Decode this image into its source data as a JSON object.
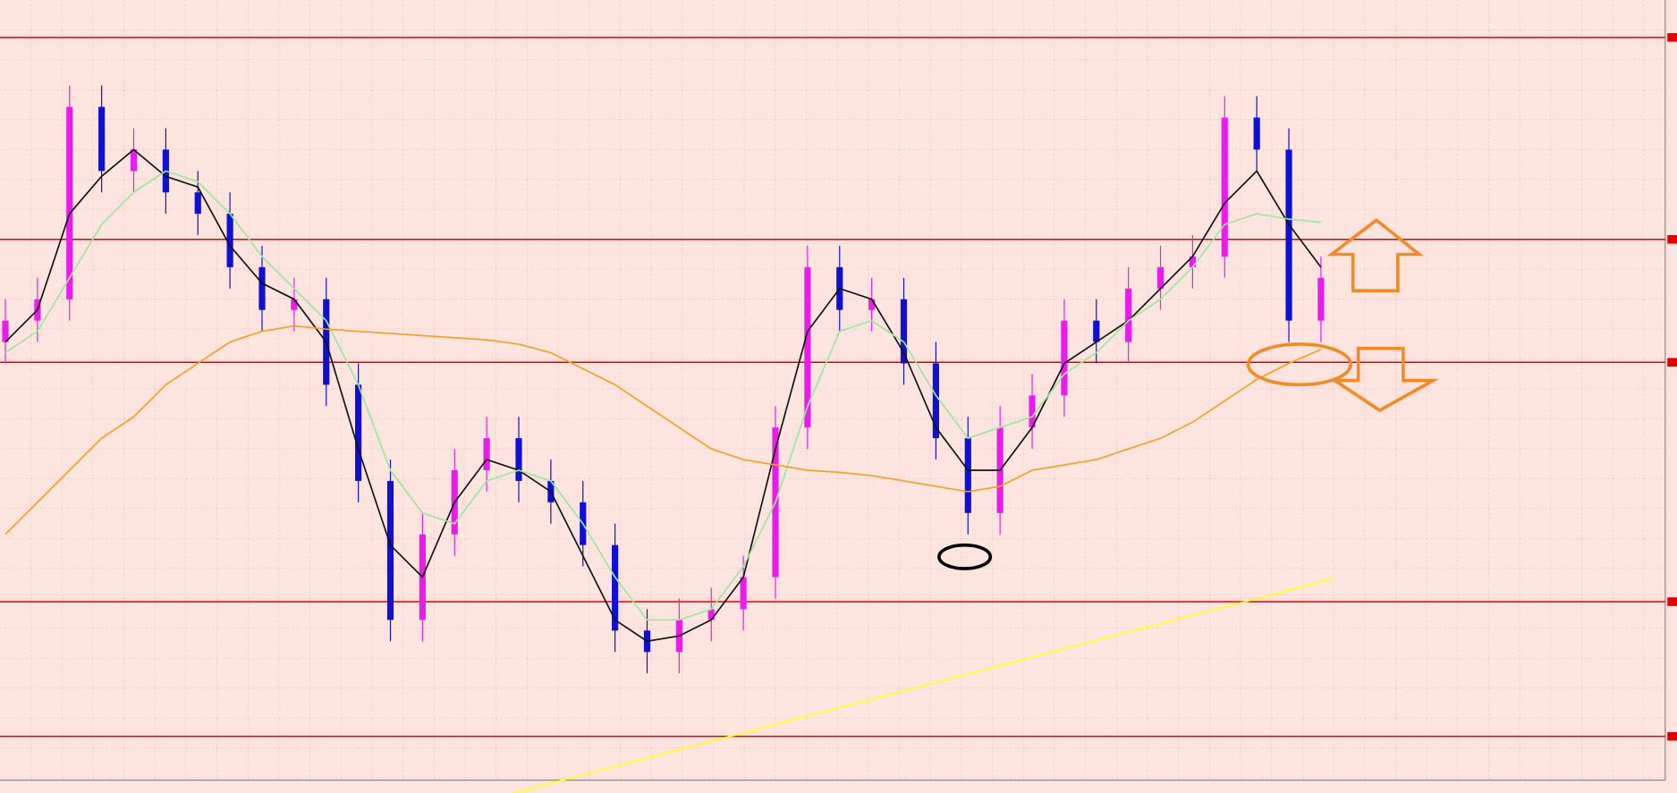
{
  "chart_data": {
    "type": "candlestick",
    "bull_color": "#e81ee8",
    "bear_color": "#1010d0",
    "grid": true,
    "ylim": [
      0,
      742
    ],
    "xlim": [
      -0.167,
      51.73
    ],
    "open": [
      422,
      442,
      462,
      642,
      582,
      602,
      562,
      542,
      492,
      452,
      462,
      382,
      292,
      162,
      242,
      302,
      332,
      292,
      272,
      232,
      152,
      132,
      162,
      172,
      202,
      342,
      492,
      452,
      462,
      402,
      332,
      262,
      342,
      372,
      442,
      422,
      472,
      492,
      502,
      632,
      602,
      442
    ],
    "high": [
      462,
      482,
      662,
      662,
      622,
      622,
      582,
      562,
      512,
      482,
      482,
      402,
      312,
      262,
      322,
      352,
      352,
      312,
      292,
      252,
      172,
      182,
      192,
      222,
      362,
      512,
      512,
      482,
      482,
      422,
      352,
      362,
      392,
      462,
      462,
      492,
      512,
      522,
      652,
      652,
      622,
      502
    ],
    "low": [
      402,
      422,
      442,
      562,
      562,
      542,
      522,
      472,
      432,
      432,
      362,
      272,
      142,
      142,
      222,
      282,
      272,
      252,
      212,
      132,
      112,
      112,
      142,
      152,
      182,
      322,
      432,
      432,
      382,
      312,
      242,
      242,
      322,
      352,
      402,
      402,
      452,
      472,
      482,
      582,
      422,
      422
    ],
    "close": [
      442,
      462,
      642,
      582,
      602,
      562,
      542,
      492,
      452,
      462,
      382,
      292,
      162,
      242,
      302,
      332,
      292,
      272,
      232,
      152,
      132,
      162,
      172,
      202,
      342,
      492,
      452,
      462,
      402,
      332,
      262,
      342,
      372,
      442,
      422,
      472,
      492,
      502,
      632,
      602,
      442,
      482
    ],
    "lines": [
      {
        "color": "#111111",
        "values": [
          422,
          452,
          542,
          577,
          602,
          577,
          567,
          512,
          477,
          462,
          422,
          322,
          232,
          202,
          272,
          312,
          302,
          282,
          222,
          162,
          142,
          147,
          162,
          202,
          322,
          432,
          472,
          462,
          412,
          342,
          302,
          302,
          342,
          402,
          422,
          442,
          472,
          502,
          552,
          582,
          532,
          492
        ]
      },
      {
        "color": "#9be89b",
        "values": [
          412,
          432,
          482,
          532,
          562,
          582,
          572,
          542,
          502,
          472,
          442,
          382,
          302,
          262,
          252,
          292,
          302,
          292,
          252,
          202,
          162,
          162,
          172,
          212,
          272,
          362,
          432,
          442,
          422,
          372,
          332,
          342,
          352,
          392,
          412,
          442,
          462,
          492,
          532,
          542,
          537,
          534
        ]
      },
      {
        "color": "#f5a020",
        "values": [
          242,
          272,
          302,
          332,
          352,
          382,
          402,
          422,
          432,
          437,
          434,
          432,
          430,
          428,
          426,
          424,
          420,
          412,
          397,
          382,
          362,
          342,
          322,
          312,
          307,
          302,
          300,
          297,
          292,
          287,
          282,
          287,
          302,
          307,
          312,
          322,
          332,
          347,
          367,
          387,
          402,
          415
        ]
      }
    ],
    "levels": [
      707,
      518,
      403,
      179,
      53
    ],
    "level_color": "#e00000",
    "trendline": {
      "color": "#ffff20",
      "x": [
        15.83,
        41.43
      ],
      "values": [
        0,
        201
      ]
    }
  }
}
